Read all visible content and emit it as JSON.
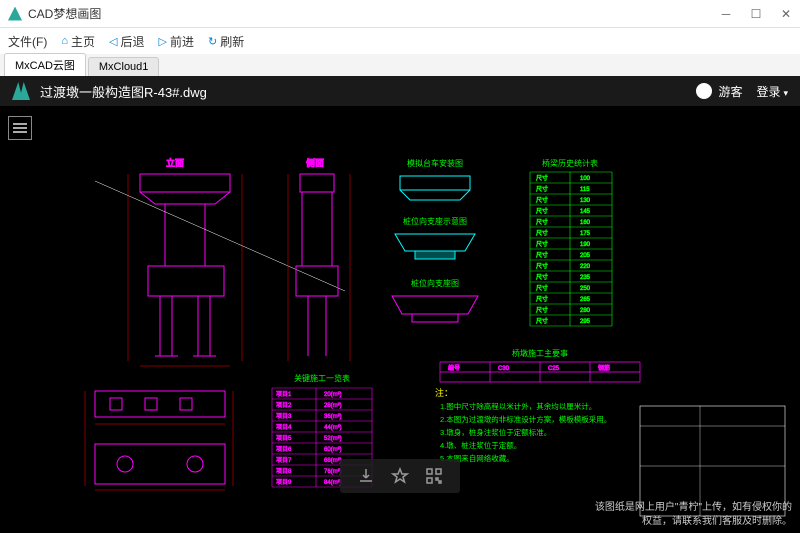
{
  "window": {
    "title": "CAD梦想画图"
  },
  "menu": {
    "file": "文件(F)",
    "home": "主页",
    "back": "后退",
    "forward": "前进",
    "refresh": "刷新"
  },
  "tabs": [
    {
      "label": "MxCAD云图",
      "active": true
    },
    {
      "label": "MxCloud1",
      "active": false
    }
  ],
  "viewer": {
    "filename": "过渡墩一般构造图R-43#.dwg",
    "user": "游客",
    "login": "登录",
    "disclaimer_l1": "该图纸是网上用户\"青柠\"上传，如有侵权你的",
    "disclaimer_l2": "权益，请联系我们客服及时删除。"
  },
  "drawing": {
    "colors": {
      "bg": "#000000",
      "magenta": "#ff00ff",
      "green": "#00ff00",
      "red": "#ff0000",
      "cyan": "#00ffff",
      "yellow": "#ffff00",
      "white": "#ffffff"
    },
    "labels": {
      "t1": "立面",
      "t2": "侧面",
      "t3": "模拟台车安装图",
      "t4": "桥梁历史统计表",
      "t5": "桩位向支座示意图",
      "t6": "桩位向支座图",
      "t7": "关键施工一览表",
      "t8": "注：",
      "t9": "桥墩施工主要事",
      "note1": "1.图中尺寸除高程以米计外，其余均以厘米计。",
      "note2": "2.本图为过渡墩的非标准设计方案，模板模板采用。",
      "note3": "3.墩身，桩身注浆位于定额标准。",
      "note4": "4.墩、桩注浆位于定额。",
      "note5": "5.本图来自网络收藏。"
    },
    "table_dims": {
      "rows": 14,
      "cols": 2
    },
    "table_sched": {
      "rows": 9,
      "cols": 2
    },
    "table_small": {
      "rows": 2,
      "cols": 4
    }
  }
}
